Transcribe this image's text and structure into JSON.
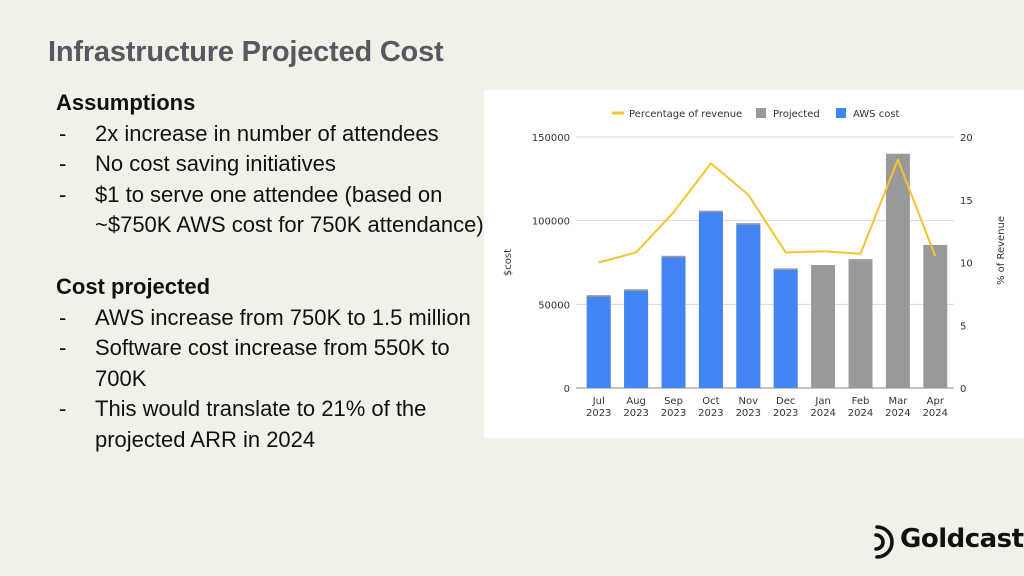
{
  "slide": {
    "title": "Infrastructure Projected Cost",
    "assumptions": {
      "heading": "Assumptions",
      "items": [
        "2x increase in number of attendees",
        "No cost saving initiatives",
        "$1 to serve one attendee (based on ~$750K AWS cost for 750K attendance)"
      ]
    },
    "cost_projected": {
      "heading": "Cost projected",
      "items": [
        "AWS increase from 750K to 1.5 million",
        "Software cost increase from 550K to 700K",
        "This would translate to 21% of the projected ARR in 2024"
      ]
    },
    "bullet_marker": "-",
    "logo_text": "Goldcast"
  },
  "chart_data": {
    "type": "bar",
    "categories": [
      [
        "Jul",
        "2023"
      ],
      [
        "Aug",
        "2023"
      ],
      [
        "Sep",
        "2023"
      ],
      [
        "Oct",
        "2023"
      ],
      [
        "Nov",
        "2023"
      ],
      [
        "Dec",
        "2023"
      ],
      [
        "Jan",
        "2024"
      ],
      [
        "Feb",
        "2024"
      ],
      [
        "Mar",
        "2024"
      ],
      [
        "Apr",
        "2024"
      ]
    ],
    "series": [
      {
        "name": "Projected",
        "type": "bar",
        "color": "#999999",
        "values": [
          55500,
          59000,
          79000,
          106000,
          98500,
          71500,
          73500,
          77000,
          140000,
          85500
        ]
      },
      {
        "name": "AWS cost",
        "type": "bar",
        "color": "#4285f4",
        "values": [
          54500,
          58000,
          78000,
          105000,
          97500,
          70500,
          null,
          null,
          null,
          null
        ]
      },
      {
        "name": "Percentage of revenue",
        "type": "line",
        "axis": "right",
        "color": "#f4c430",
        "values": [
          10.0,
          10.8,
          14.0,
          17.9,
          15.4,
          10.8,
          10.9,
          10.7,
          18.2,
          10.5
        ]
      }
    ],
    "ylabel": "$cost",
    "ylabel_right": "% of Revenue",
    "ylim": [
      0,
      150000
    ],
    "yticks": [
      "0",
      "50000",
      "100000",
      "150000"
    ],
    "ylim_right": [
      0,
      20
    ],
    "yticks_right": [
      "0",
      "5",
      "10",
      "15",
      "20"
    ],
    "legend_position": "top",
    "grid": true
  }
}
